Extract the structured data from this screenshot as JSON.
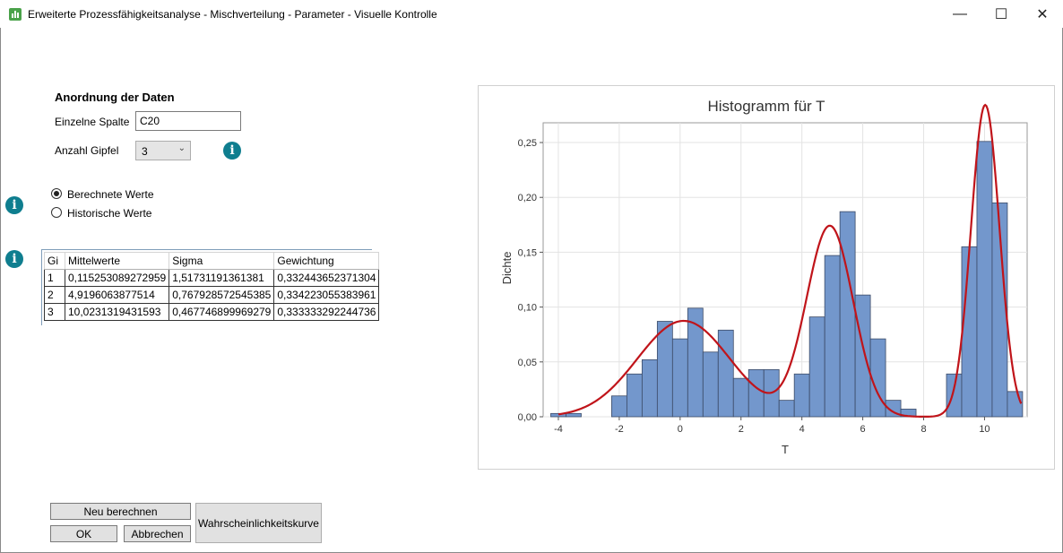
{
  "window": {
    "title": "Erweiterte Prozessfähigkeitsanalyse - Mischverteilung - Parameter - Visuelle Kontrolle",
    "minimize_glyph": "—",
    "maximize_glyph": "☐",
    "close_glyph": "✕"
  },
  "form": {
    "section_title": "Anordnung der Daten",
    "column_label": "Einzelne Spalte",
    "column_value": "C20",
    "peaks_label": "Anzahl Gipfel",
    "peaks_value": "3",
    "radio_calculated": "Berechnete Werte",
    "radio_historic": "Historische Werte",
    "selected_radio": "calculated"
  },
  "table": {
    "headers": [
      "Gi",
      "Mittelwerte",
      "Sigma",
      "Gewichtung"
    ],
    "rows": [
      [
        "1",
        "0,115253089272959",
        "1,51731191361381",
        "0,332443652371304"
      ],
      [
        "2",
        "4,9196063877514",
        "0,767928572545385",
        "0,334223055383961"
      ],
      [
        "3",
        "10,0231319431593",
        "0,467746899969279",
        "0,333333292244736"
      ]
    ]
  },
  "buttons": {
    "recalculate": "Neu berechnen",
    "ok": "OK",
    "cancel": "Abbrechen",
    "probability_curve": "Wahrscheinlichkeitskurve"
  },
  "colors": {
    "bar_fill": "#7397cc",
    "bar_stroke": "#3b4a66",
    "curve": "#c0141a",
    "info_icon": "#0f7e8f"
  },
  "chart_data": {
    "type": "bar",
    "title": "Histogramm für T",
    "xlabel": "T",
    "ylabel": "Dichte",
    "xlim": [
      -4.5,
      11.4
    ],
    "ylim": [
      0,
      0.268
    ],
    "xticks": [
      -4,
      -2,
      0,
      2,
      4,
      6,
      8,
      10
    ],
    "xtick_labels": [
      "-4",
      "-2",
      "0",
      "2",
      "4",
      "6",
      "8",
      "10"
    ],
    "yticks": [
      0,
      0.05,
      0.1,
      0.15,
      0.2,
      0.25
    ],
    "ytick_labels": [
      "0,00",
      "0,05",
      "0,10",
      "0,15",
      "0,20",
      "0,25"
    ],
    "grid": true,
    "bin_width": 0.5,
    "bins": [
      {
        "x0": -4.25,
        "value": 0.003
      },
      {
        "x0": -3.75,
        "value": 0.003
      },
      {
        "x0": -2.25,
        "value": 0.019
      },
      {
        "x0": -1.75,
        "value": 0.039
      },
      {
        "x0": -1.25,
        "value": 0.052
      },
      {
        "x0": -0.75,
        "value": 0.087
      },
      {
        "x0": -0.25,
        "value": 0.071
      },
      {
        "x0": 0.25,
        "value": 0.099
      },
      {
        "x0": 0.75,
        "value": 0.059
      },
      {
        "x0": 1.25,
        "value": 0.079
      },
      {
        "x0": 1.75,
        "value": 0.035
      },
      {
        "x0": 2.25,
        "value": 0.043
      },
      {
        "x0": 2.75,
        "value": 0.043
      },
      {
        "x0": 3.25,
        "value": 0.015
      },
      {
        "x0": 3.75,
        "value": 0.039
      },
      {
        "x0": 4.25,
        "value": 0.091
      },
      {
        "x0": 4.75,
        "value": 0.147
      },
      {
        "x0": 5.25,
        "value": 0.187
      },
      {
        "x0": 5.75,
        "value": 0.111
      },
      {
        "x0": 6.25,
        "value": 0.071
      },
      {
        "x0": 6.75,
        "value": 0.015
      },
      {
        "x0": 7.25,
        "value": 0.007
      },
      {
        "x0": 8.75,
        "value": 0.039
      },
      {
        "x0": 9.25,
        "value": 0.155
      },
      {
        "x0": 9.75,
        "value": 0.251
      },
      {
        "x0": 10.25,
        "value": 0.195
      },
      {
        "x0": 10.75,
        "value": 0.023
      }
    ],
    "curve": {
      "type": "line",
      "components": [
        {
          "mean": 0.115253089272959,
          "sigma": 1.51731191361381,
          "weight": 0.332443652371304
        },
        {
          "mean": 4.9196063877514,
          "sigma": 0.767928572545385,
          "weight": 0.334223055383961
        },
        {
          "mean": 10.0231319431593,
          "sigma": 0.467746899969279,
          "weight": 0.333333292244736
        }
      ],
      "x_range": [
        -4.0,
        11.2
      ]
    }
  }
}
